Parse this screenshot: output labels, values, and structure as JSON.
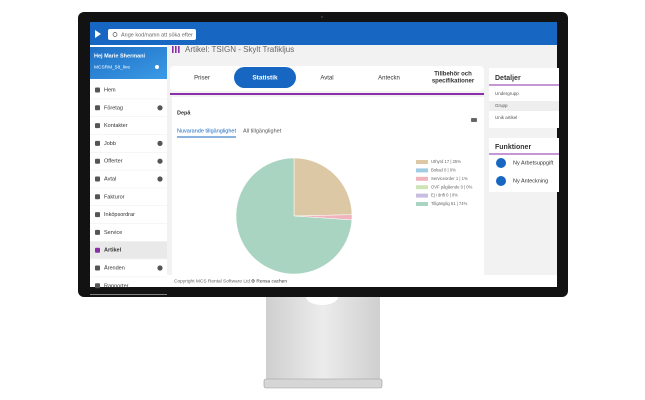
{
  "search_placeholder": "Ange kod/namn att söka efter",
  "user": {
    "greeting": "Hej Marie Shermani",
    "database": "MCSRM_58_live"
  },
  "menu": [
    "Hem",
    "Företag",
    "Kontakter",
    "Jobb",
    "Offerter",
    "Avtal",
    "Fakturor",
    "Inköpsordrar",
    "Service",
    "Artikel",
    "Ärenden",
    "Rapporter"
  ],
  "page_title": "Artikel: TSIGN - Skylt Trafikljus",
  "tabs": [
    "Priser",
    "Statistik",
    "Avtal",
    "Anteckn",
    "Tillbehör och",
    "specifikationer"
  ],
  "panel": {
    "title": "Depå",
    "subtabs": [
      "Nuvarande tillgänglighet",
      "All tillgänglighet"
    ]
  },
  "chart": {
    "type": "pie",
    "values": [
      17,
      0,
      1,
      0,
      0,
      51
    ],
    "value_labels": [
      "Uthyrd 17 | 25%",
      "Bokad 0 | 0%",
      "Serviceorder 1 | 1%",
      "OVF pågående 0 | 0%",
      "Ej i drift 0 | 0%",
      "Tillgänglig 51 | 74%"
    ],
    "colors": [
      "#dcc8a4",
      "#9fcbe3",
      "#f0b4bd",
      "#cfe4b4",
      "#c9bde0",
      "#a9d4c1"
    ]
  },
  "details": {
    "title": "Detaljer",
    "rows": [
      "Undergrupp",
      "Grupp",
      "Unik artikel"
    ]
  },
  "functions": {
    "title": "Funktioner",
    "items": [
      "Ny Arbetsuppgift",
      "Ny Anteckning"
    ]
  },
  "footer": {
    "copyright": "Copyright MCS Rental Software Ltd.",
    "clear_cache": "⊕ Rensa cachen"
  }
}
